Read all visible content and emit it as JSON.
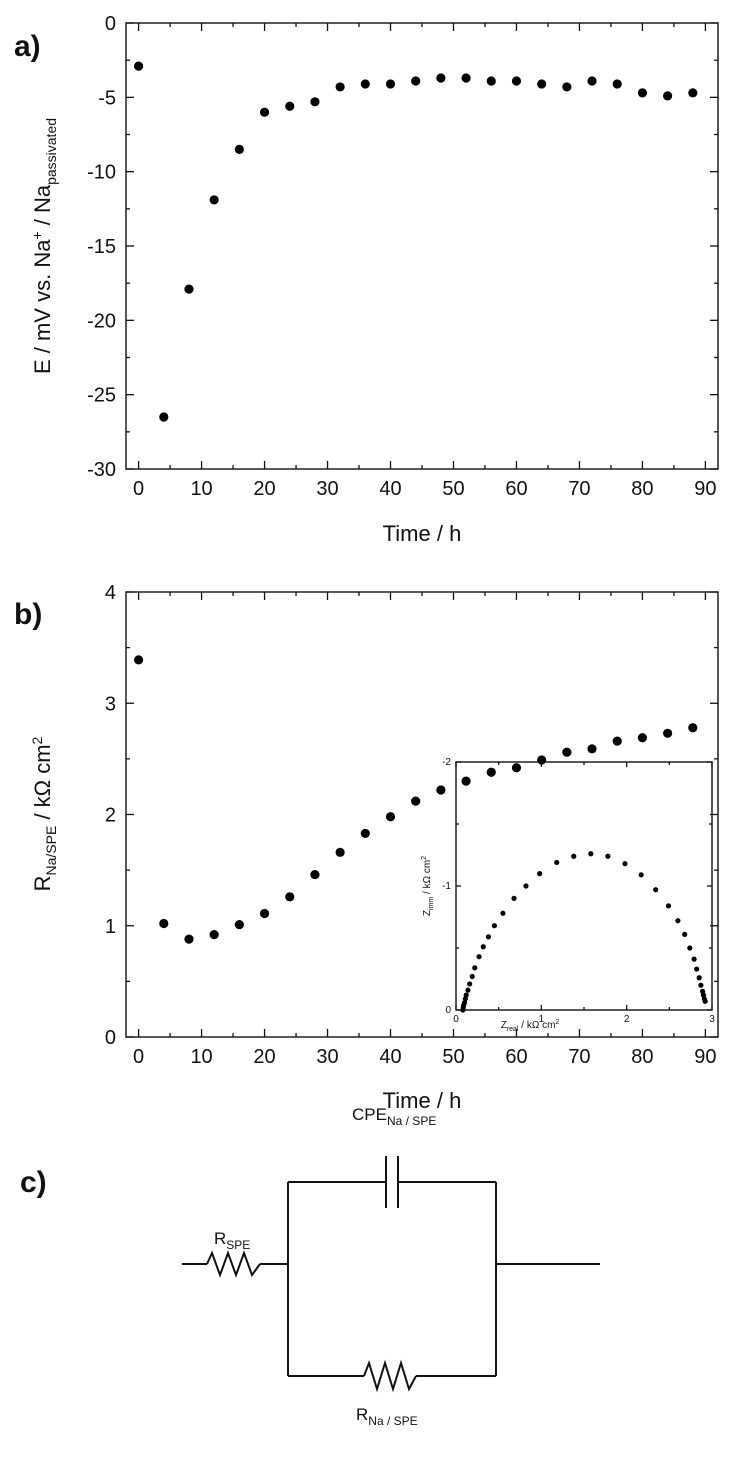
{
  "figure": {
    "panel_a_label": "a)",
    "panel_b_label": "b)",
    "panel_c_label": "c)"
  },
  "chart_data": [
    {
      "id": "a",
      "type": "scatter",
      "xlabel": "Time / h",
      "ylabel": {
        "main": "E / mV vs. Na",
        "sup": "+",
        "mid": " / Na",
        "sub": "passivated"
      },
      "xlim": [
        -2,
        92
      ],
      "ylim": [
        -30,
        0
      ],
      "xticks": [
        "0",
        "10",
        "20",
        "30",
        "40",
        "50",
        "60",
        "70",
        "80",
        "90"
      ],
      "yticks": [
        "-30",
        "-25",
        "-20",
        "-15",
        "-10",
        "-5",
        "0"
      ],
      "points": [
        [
          0,
          -2.9
        ],
        [
          4,
          -26.5
        ],
        [
          8,
          -17.9
        ],
        [
          12,
          -11.9
        ],
        [
          16,
          -8.5
        ],
        [
          20,
          -6.0
        ],
        [
          24,
          -5.6
        ],
        [
          28,
          -5.3
        ],
        [
          32,
          -4.3
        ],
        [
          36,
          -4.1
        ],
        [
          40,
          -4.1
        ],
        [
          44,
          -3.9
        ],
        [
          48,
          -3.7
        ],
        [
          52,
          -3.7
        ],
        [
          56,
          -3.9
        ],
        [
          60,
          -3.9
        ],
        [
          64,
          -4.1
        ],
        [
          68,
          -4.3
        ],
        [
          72,
          -3.9
        ],
        [
          76,
          -4.1
        ],
        [
          80,
          -4.7
        ],
        [
          84,
          -4.9
        ],
        [
          88,
          -4.7
        ]
      ]
    },
    {
      "id": "b",
      "type": "scatter",
      "xlabel": "Time / h",
      "ylabel": {
        "main": "R",
        "sub": "Na/SPE",
        "mid": " / kΩ cm",
        "sup": "2"
      },
      "xlim": [
        -2,
        92
      ],
      "ylim": [
        0,
        4
      ],
      "xticks": [
        "0",
        "10",
        "20",
        "30",
        "40",
        "50",
        "60",
        "70",
        "80",
        "90"
      ],
      "yticks": [
        "0",
        "1",
        "2",
        "3",
        "4"
      ],
      "points": [
        [
          0,
          3.39
        ],
        [
          4,
          1.02
        ],
        [
          8,
          0.88
        ],
        [
          12,
          0.92
        ],
        [
          16,
          1.01
        ],
        [
          20,
          1.11
        ],
        [
          24,
          1.26
        ],
        [
          28,
          1.46
        ],
        [
          32,
          1.66
        ],
        [
          36,
          1.83
        ],
        [
          40,
          1.98
        ],
        [
          44,
          2.12
        ],
        [
          48,
          2.22
        ],
        [
          52,
          2.3
        ],
        [
          56,
          2.38
        ],
        [
          60,
          2.42
        ],
        [
          64,
          2.49
        ],
        [
          68,
          2.56
        ],
        [
          72,
          2.59
        ],
        [
          76,
          2.66
        ],
        [
          80,
          2.69
        ],
        [
          84,
          2.73
        ],
        [
          88,
          2.78
        ]
      ]
    },
    {
      "id": "b-inset",
      "type": "scatter",
      "xlabel": {
        "main": "Z",
        "sub": "real",
        "mid": " / kΩ cm",
        "sup": "2"
      },
      "ylabel": {
        "main": "Z",
        "sub": "imm",
        "mid": " / kΩ cm",
        "sup": "2"
      },
      "xlim": [
        0,
        3
      ],
      "ylim": [
        0,
        -2
      ],
      "xticks": [
        "0",
        "1",
        "2",
        "3"
      ],
      "yticks": [
        "0",
        "-1",
        "-2"
      ],
      "points": [
        [
          0.08,
          0.0
        ],
        [
          0.085,
          -0.02
        ],
        [
          0.09,
          -0.04
        ],
        [
          0.1,
          -0.06
        ],
        [
          0.11,
          -0.09
        ],
        [
          0.12,
          -0.12
        ],
        [
          0.14,
          -0.16
        ],
        [
          0.16,
          -0.21
        ],
        [
          0.19,
          -0.27
        ],
        [
          0.22,
          -0.34
        ],
        [
          0.27,
          -0.43
        ],
        [
          0.32,
          -0.51
        ],
        [
          0.38,
          -0.59
        ],
        [
          0.45,
          -0.68
        ],
        [
          0.55,
          -0.78
        ],
        [
          0.68,
          -0.9
        ],
        [
          0.82,
          -1.0
        ],
        [
          0.98,
          -1.1
        ],
        [
          1.18,
          -1.19
        ],
        [
          1.38,
          -1.24
        ],
        [
          1.58,
          -1.26
        ],
        [
          1.78,
          -1.24
        ],
        [
          1.98,
          -1.18
        ],
        [
          2.17,
          -1.09
        ],
        [
          2.34,
          -0.97
        ],
        [
          2.49,
          -0.84
        ],
        [
          2.6,
          -0.72
        ],
        [
          2.68,
          -0.61
        ],
        [
          2.74,
          -0.5
        ],
        [
          2.79,
          -0.41
        ],
        [
          2.82,
          -0.33
        ],
        [
          2.85,
          -0.26
        ],
        [
          2.87,
          -0.2
        ],
        [
          2.89,
          -0.15
        ],
        [
          2.9,
          -0.12
        ],
        [
          2.91,
          -0.09
        ],
        [
          2.92,
          -0.07
        ]
      ]
    }
  ],
  "circuit": {
    "r_spe": {
      "main": "R",
      "sub": "SPE"
    },
    "cpe": {
      "main": "CPE",
      "sub": "Na / SPE"
    },
    "r_na": {
      "main": "R",
      "sub": "Na / SPE"
    }
  }
}
